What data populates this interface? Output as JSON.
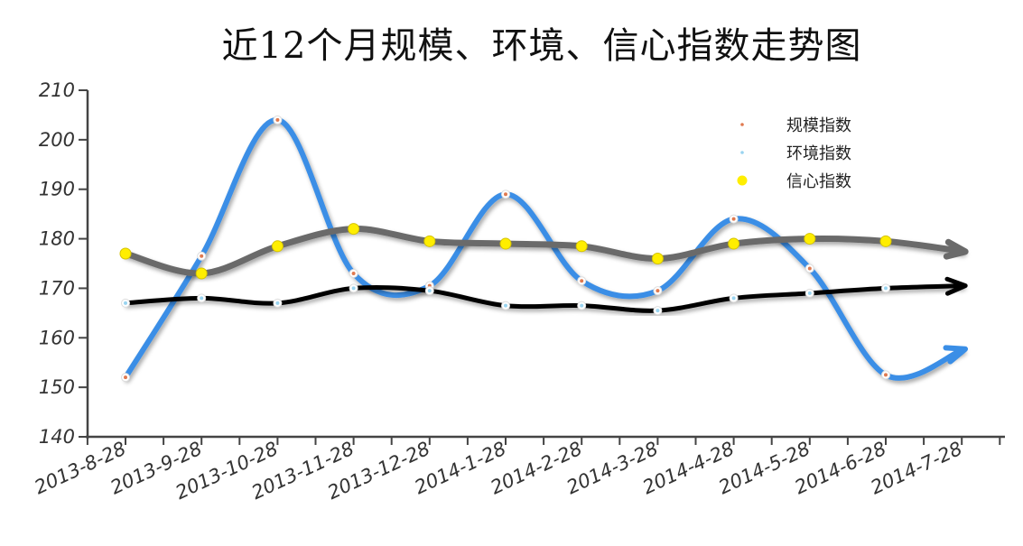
{
  "chart_data": {
    "type": "line",
    "title": "近12个月规模、环境、信心指数走势图",
    "xlabel": "",
    "ylabel": "",
    "ylim": [
      140,
      210
    ],
    "yticks": [
      140,
      150,
      160,
      170,
      180,
      190,
      200,
      210
    ],
    "grid": false,
    "legend_position": "top-right",
    "categories": [
      "2013-8-28",
      "2013-9-28",
      "2013-10-28",
      "2013-11-28",
      "2013-12-28",
      "2014-1-28",
      "2014-2-28",
      "2014-3-28",
      "2014-4-28",
      "2014-5-28",
      "2014-6-28",
      "2014-7-28"
    ],
    "series": [
      {
        "name": "规模指数",
        "color": "#3a8ee6",
        "marker_color": "#e07a50",
        "values": [
          152,
          176.5,
          204,
          173,
          170.5,
          189,
          171.5,
          169.5,
          184,
          174,
          152.5,
          157.5
        ]
      },
      {
        "name": "环境指数",
        "color": "#000000",
        "marker_color": "#9ad4f0",
        "values": [
          167,
          168,
          167,
          170,
          169.5,
          166.5,
          166.5,
          165.5,
          168,
          169,
          170,
          170.5
        ]
      },
      {
        "name": "信心指数",
        "color": "#6a6a6a",
        "marker_color": "#ffee00",
        "values": [
          177,
          173,
          178.5,
          182,
          179.5,
          179,
          178.5,
          176,
          179,
          180,
          179.5,
          177.5
        ]
      }
    ]
  }
}
